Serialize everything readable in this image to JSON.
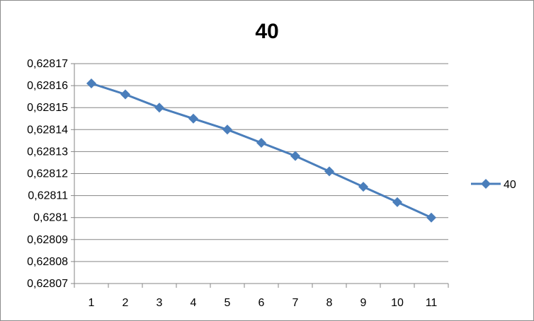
{
  "chart_data": {
    "type": "line",
    "title": "40",
    "xlabel": "",
    "ylabel": "",
    "categories": [
      "1",
      "2",
      "3",
      "4",
      "5",
      "6",
      "7",
      "8",
      "9",
      "10",
      "11"
    ],
    "series": [
      {
        "name": "40",
        "color": "#4a7ebb",
        "marker": "diamond",
        "values": [
          0.628161,
          0.628156,
          0.62815,
          0.628145,
          0.62814,
          0.628134,
          0.628128,
          0.628121,
          0.628114,
          0.628107,
          0.6281
        ]
      }
    ],
    "ylim": [
      0.62807,
      0.62817
    ],
    "yticks": [
      "0,62807",
      "0,62808",
      "0,62809",
      "0,6281",
      "0,62811",
      "0,62812",
      "0,62813",
      "0,62814",
      "0,62815",
      "0,62816",
      "0,62817"
    ],
    "grid": true,
    "legend_position": "right"
  }
}
